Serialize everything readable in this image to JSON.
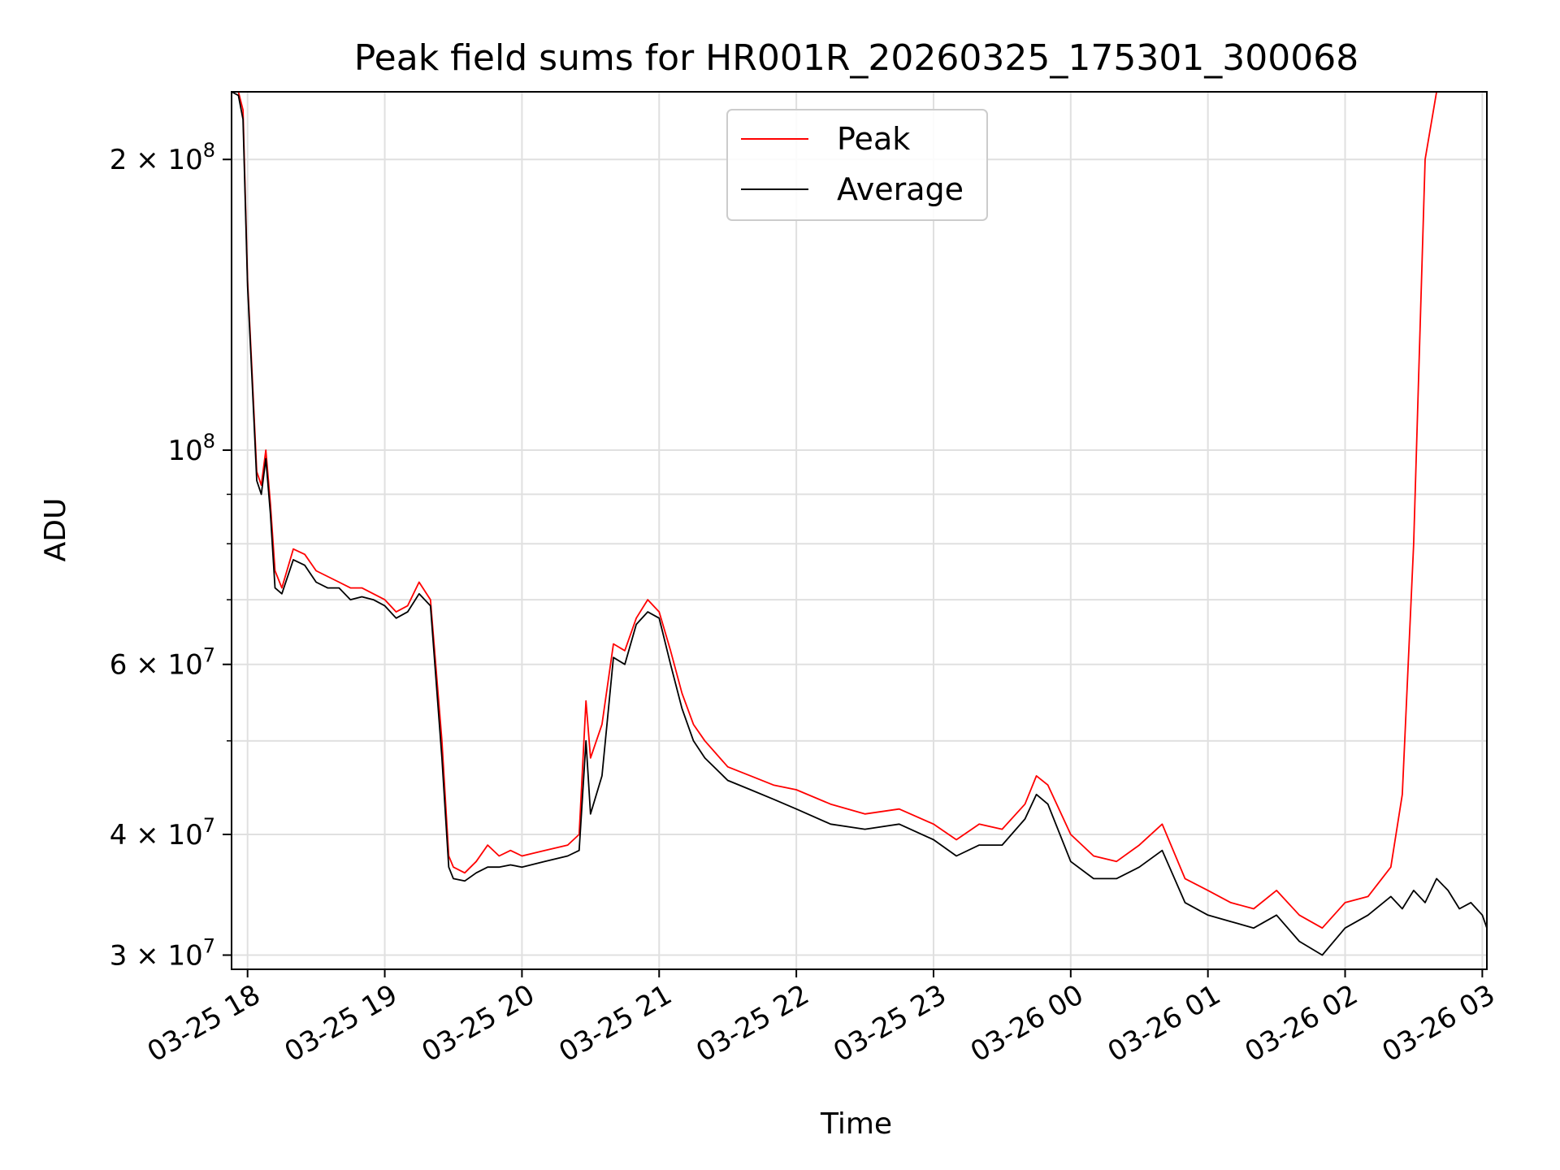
{
  "chart_data": {
    "type": "line",
    "title": "Peak field sums for HR001R_20260325_175301_300068",
    "xlabel": "Time",
    "ylabel": "ADU",
    "y_scale": "log",
    "ylim": [
      29000000,
      235000000
    ],
    "xlim": [
      "03-25 17:53",
      "03-26 03:02"
    ],
    "grid": true,
    "legend_position": "upper center",
    "x_ticks": [
      "03-25 18",
      "03-25 19",
      "03-25 20",
      "03-25 21",
      "03-25 22",
      "03-25 23",
      "03-26 00",
      "03-26 01",
      "03-26 02",
      "03-26 03"
    ],
    "y_ticks": [
      {
        "value": 30000000,
        "mantissa": "3",
        "exponent": "7"
      },
      {
        "value": 40000000,
        "mantissa": "4",
        "exponent": "7"
      },
      {
        "value": 60000000,
        "mantissa": "6",
        "exponent": "7"
      },
      {
        "value": 100000000,
        "mantissa": "",
        "exponent": "8"
      },
      {
        "value": 200000000,
        "mantissa": "2",
        "exponent": "8"
      }
    ],
    "series": [
      {
        "name": "Peak",
        "color": "#ff0000",
        "x": [
          "03-25 17:53",
          "03-25 17:56",
          "03-25 17:58",
          "03-25 18:00",
          "03-25 18:02",
          "03-25 18:04",
          "03-25 18:06",
          "03-25 18:08",
          "03-25 18:10",
          "03-25 18:12",
          "03-25 18:15",
          "03-25 18:20",
          "03-25 18:25",
          "03-25 18:30",
          "03-25 18:35",
          "03-25 18:40",
          "03-25 18:45",
          "03-25 18:50",
          "03-25 18:55",
          "03-25 19:00",
          "03-25 19:05",
          "03-25 19:10",
          "03-25 19:15",
          "03-25 19:20",
          "03-25 19:25",
          "03-25 19:28",
          "03-25 19:30",
          "03-25 19:35",
          "03-25 19:40",
          "03-25 19:45",
          "03-25 19:50",
          "03-25 19:55",
          "03-25 20:00",
          "03-25 20:10",
          "03-25 20:20",
          "03-25 20:25",
          "03-25 20:28",
          "03-25 20:30",
          "03-25 20:35",
          "03-25 20:40",
          "03-25 20:45",
          "03-25 20:50",
          "03-25 20:55",
          "03-25 21:00",
          "03-25 21:05",
          "03-25 21:10",
          "03-25 21:15",
          "03-25 21:20",
          "03-25 21:30",
          "03-25 21:40",
          "03-25 21:50",
          "03-25 22:00",
          "03-25 22:15",
          "03-25 22:30",
          "03-25 22:45",
          "03-25 23:00",
          "03-25 23:10",
          "03-25 23:20",
          "03-25 23:30",
          "03-25 23:40",
          "03-25 23:45",
          "03-25 23:50",
          "03-26 00:00",
          "03-26 00:10",
          "03-26 00:20",
          "03-26 00:30",
          "03-26 00:40",
          "03-26 00:50",
          "03-26 01:00",
          "03-26 01:10",
          "03-26 01:20",
          "03-26 01:30",
          "03-26 01:40",
          "03-26 01:50",
          "03-26 02:00",
          "03-26 02:10",
          "03-26 02:20",
          "03-26 02:25",
          "03-26 02:30",
          "03-26 02:35",
          "03-26 02:40",
          "03-26 02:45",
          "03-26 02:50",
          "03-26 02:55",
          "03-26 03:00",
          "03-26 03:02"
        ],
        "y": [
          235000000,
          235000000,
          225000000,
          150000000,
          120000000,
          95000000,
          92000000,
          100000000,
          88000000,
          75000000,
          72000000,
          79000000,
          78000000,
          75000000,
          74000000,
          73000000,
          72000000,
          72000000,
          71000000,
          70000000,
          68000000,
          69000000,
          73000000,
          70000000,
          50000000,
          38000000,
          37000000,
          36500000,
          37500000,
          39000000,
          38000000,
          38500000,
          38000000,
          38500000,
          39000000,
          40000000,
          55000000,
          48000000,
          52000000,
          63000000,
          62000000,
          67000000,
          70000000,
          68000000,
          62000000,
          56000000,
          52000000,
          50000000,
          47000000,
          46000000,
          45000000,
          44500000,
          43000000,
          42000000,
          42500000,
          41000000,
          39500000,
          41000000,
          40500000,
          43000000,
          46000000,
          45000000,
          40000000,
          38000000,
          37500000,
          39000000,
          41000000,
          36000000,
          35000000,
          34000000,
          33500000,
          35000000,
          33000000,
          32000000,
          34000000,
          34500000,
          37000000,
          44000000,
          80000000,
          200000000,
          235000000,
          235000000,
          235000000,
          235000000,
          235000000,
          235000000
        ]
      },
      {
        "name": "Average",
        "color": "#000000",
        "x": [
          "03-25 17:53",
          "03-25 17:56",
          "03-25 17:58",
          "03-25 18:00",
          "03-25 18:02",
          "03-25 18:04",
          "03-25 18:06",
          "03-25 18:08",
          "03-25 18:10",
          "03-25 18:12",
          "03-25 18:15",
          "03-25 18:20",
          "03-25 18:25",
          "03-25 18:30",
          "03-25 18:35",
          "03-25 18:40",
          "03-25 18:45",
          "03-25 18:50",
          "03-25 18:55",
          "03-25 19:00",
          "03-25 19:05",
          "03-25 19:10",
          "03-25 19:15",
          "03-25 19:20",
          "03-25 19:25",
          "03-25 19:28",
          "03-25 19:30",
          "03-25 19:35",
          "03-25 19:40",
          "03-25 19:45",
          "03-25 19:50",
          "03-25 19:55",
          "03-25 20:00",
          "03-25 20:10",
          "03-25 20:20",
          "03-25 20:25",
          "03-25 20:28",
          "03-25 20:30",
          "03-25 20:35",
          "03-25 20:40",
          "03-25 20:45",
          "03-25 20:50",
          "03-25 20:55",
          "03-25 21:00",
          "03-25 21:05",
          "03-25 21:10",
          "03-25 21:15",
          "03-25 21:20",
          "03-25 21:30",
          "03-25 21:40",
          "03-25 21:50",
          "03-25 22:00",
          "03-25 22:15",
          "03-25 22:30",
          "03-25 22:45",
          "03-25 23:00",
          "03-25 23:10",
          "03-25 23:20",
          "03-25 23:30",
          "03-25 23:40",
          "03-25 23:45",
          "03-25 23:50",
          "03-26 00:00",
          "03-26 00:10",
          "03-26 00:20",
          "03-26 00:30",
          "03-26 00:40",
          "03-26 00:50",
          "03-26 01:00",
          "03-26 01:10",
          "03-26 01:20",
          "03-26 01:30",
          "03-26 01:40",
          "03-26 01:50",
          "03-26 02:00",
          "03-26 02:10",
          "03-26 02:20",
          "03-26 02:25",
          "03-26 02:30",
          "03-26 02:35",
          "03-26 02:40",
          "03-26 02:45",
          "03-26 02:50",
          "03-26 02:55",
          "03-26 03:00",
          "03-26 03:02"
        ],
        "y": [
          235000000,
          233000000,
          220000000,
          148000000,
          118000000,
          93000000,
          90000000,
          98000000,
          86000000,
          72000000,
          71000000,
          77000000,
          76000000,
          73000000,
          72000000,
          72000000,
          70000000,
          70500000,
          70000000,
          69000000,
          67000000,
          68000000,
          71000000,
          69000000,
          48000000,
          37000000,
          36000000,
          35800000,
          36500000,
          37000000,
          37000000,
          37200000,
          37000000,
          37500000,
          38000000,
          38500000,
          50000000,
          42000000,
          46000000,
          61000000,
          60000000,
          66000000,
          68000000,
          67000000,
          60000000,
          54000000,
          50000000,
          48000000,
          45500000,
          44500000,
          43500000,
          42500000,
          41000000,
          40500000,
          41000000,
          39500000,
          38000000,
          39000000,
          39000000,
          41500000,
          44000000,
          43000000,
          37500000,
          36000000,
          36000000,
          37000000,
          38500000,
          34000000,
          33000000,
          32500000,
          32000000,
          33000000,
          31000000,
          30000000,
          32000000,
          33000000,
          34500000,
          33500000,
          35000000,
          34000000,
          36000000,
          35000000,
          33500000,
          34000000,
          33000000,
          32000000
        ]
      }
    ]
  }
}
